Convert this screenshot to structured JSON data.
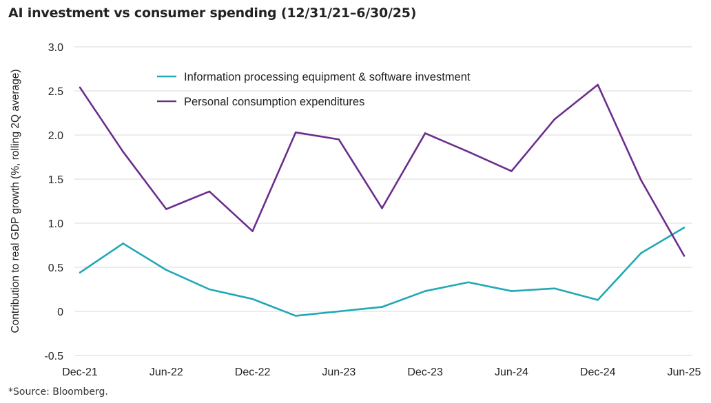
{
  "chart_data": {
    "type": "line",
    "title": "AI investment vs consumer spending (12/31/21–6/30/25)",
    "ylabel": "Contribution to real GDP growth (%, rolling 2Q average)",
    "xlabel": "",
    "ylim": [
      -0.5,
      3.0
    ],
    "yticks": [
      "-0.5",
      "0",
      "0.5",
      "1.0",
      "1.5",
      "2.0",
      "2.5",
      "3.0"
    ],
    "ytick_values": [
      -0.5,
      0,
      0.5,
      1.0,
      1.5,
      2.0,
      2.5,
      3.0
    ],
    "x": [
      "Dec-21",
      "Mar-22",
      "Jun-22",
      "Sep-22",
      "Dec-22",
      "Mar-23",
      "Jun-23",
      "Sep-23",
      "Dec-23",
      "Mar-24",
      "Jun-24",
      "Sep-24",
      "Dec-24",
      "Mar-25",
      "Jun-25"
    ],
    "xtick_labels": [
      "Dec-21",
      "Jun-22",
      "Dec-22",
      "Jun-23",
      "Dec-23",
      "Jun-24",
      "Dec-24",
      "Jun-25"
    ],
    "xtick_index": [
      0,
      2,
      4,
      6,
      8,
      10,
      12,
      14
    ],
    "grid": true,
    "legend_position": "top-left",
    "series": [
      {
        "name": "Information processing equipment & software investment",
        "color": "#1fa8b6",
        "values": [
          0.44,
          0.77,
          0.47,
          0.25,
          0.14,
          -0.05,
          0.0,
          0.05,
          0.23,
          0.33,
          0.23,
          0.26,
          0.13,
          0.66,
          0.95
        ]
      },
      {
        "name": "Personal consumption expenditures",
        "color": "#6b2d8c",
        "values": [
          2.54,
          1.81,
          1.16,
          1.36,
          0.91,
          2.03,
          1.95,
          1.17,
          2.02,
          1.81,
          1.59,
          2.18,
          2.57,
          1.49,
          0.63
        ]
      }
    ]
  },
  "source": "*Source: Bloomberg."
}
